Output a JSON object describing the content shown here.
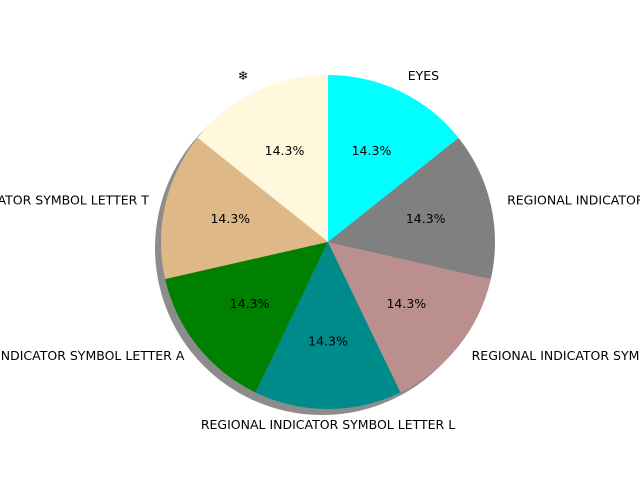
{
  "chart_data": {
    "type": "pie",
    "title": "",
    "shadow": true,
    "start_angle_deg": 90,
    "direction": "counterclockwise",
    "slices": [
      {
        "label": "❄",
        "value": 14.3,
        "display": "14.3%",
        "color": "#fff8dc"
      },
      {
        "label": "REGIONAL INDICATOR SYMBOL LETTER T",
        "value": 14.3,
        "display": "14.3%",
        "color": "#deb887"
      },
      {
        "label": "REGIONAL INDICATOR SYMBOL LETTER A",
        "value": 14.3,
        "display": "14.3%",
        "color": "#008000"
      },
      {
        "label": "REGIONAL INDICATOR SYMBOL LETTER L",
        "value": 14.3,
        "display": "14.3%",
        "color": "#008b8b"
      },
      {
        "label": "REGIONAL INDICATOR SYMBOL LETTER L",
        "value": 14.3,
        "display": "14.3%",
        "color": "#bc8f8f"
      },
      {
        "label": "REGIONAL INDICATOR SYMBOL LETTER L",
        "value": 14.3,
        "display": "14.3%",
        "color": "#808080"
      },
      {
        "label": "EYES",
        "value": 14.3,
        "display": "14.3%",
        "color": "#00ffff"
      }
    ]
  }
}
